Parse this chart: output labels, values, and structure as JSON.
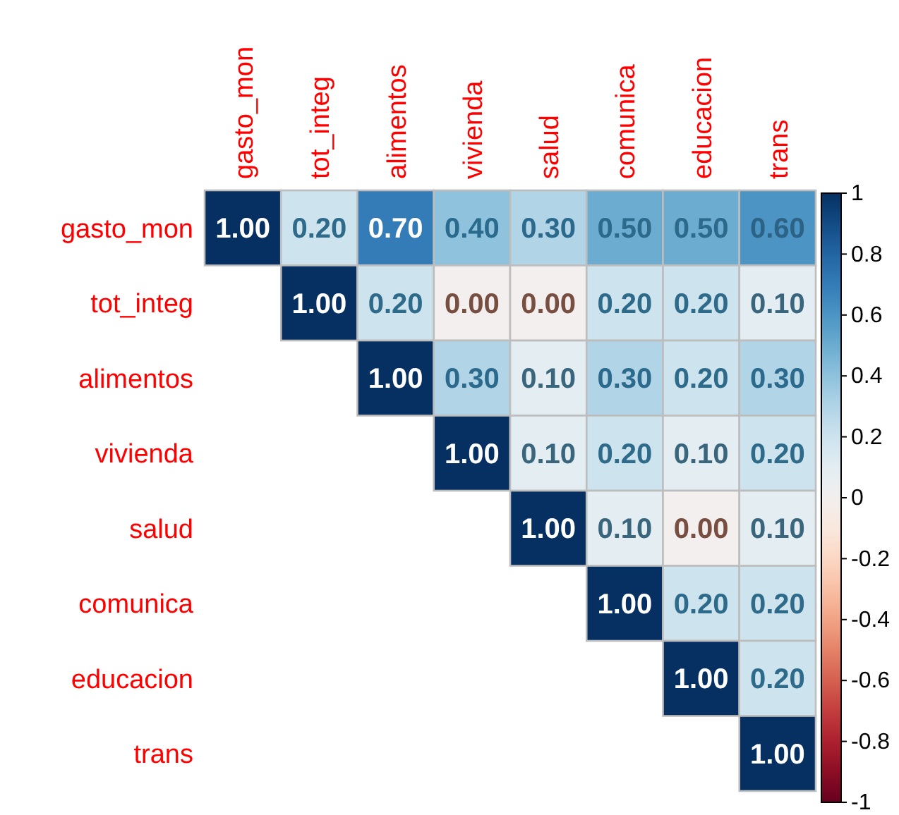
{
  "chart_data": {
    "type": "heatmap",
    "categories": [
      "gasto_mon",
      "tot_integ",
      "alimentos",
      "vivienda",
      "salud",
      "comunica",
      "educacion",
      "trans"
    ],
    "y_categories": [
      "gasto_mon",
      "tot_integ",
      "alimentos",
      "vivienda",
      "salud",
      "comunica",
      "educacion",
      "trans"
    ],
    "cells": [
      [
        1.0,
        0.2,
        0.7,
        0.4,
        0.3,
        0.5,
        0.5,
        0.6
      ],
      [
        null,
        1.0,
        0.2,
        0.0,
        0.0,
        0.2,
        0.2,
        0.1
      ],
      [
        null,
        null,
        1.0,
        0.3,
        0.1,
        0.3,
        0.2,
        0.3
      ],
      [
        null,
        null,
        null,
        1.0,
        0.1,
        0.2,
        0.1,
        0.2
      ],
      [
        null,
        null,
        null,
        null,
        1.0,
        0.1,
        0.0,
        0.1
      ],
      [
        null,
        null,
        null,
        null,
        null,
        1.0,
        0.2,
        0.2
      ],
      [
        null,
        null,
        null,
        null,
        null,
        null,
        1.0,
        0.2
      ],
      [
        null,
        null,
        null,
        null,
        null,
        null,
        null,
        1.0
      ]
    ],
    "cell_labels": [
      [
        "1.00",
        "0.20",
        "0.70",
        "0.40",
        "0.30",
        "0.50",
        "0.50",
        "0.60"
      ],
      [
        null,
        "1.00",
        "0.20",
        "0.00",
        "0.00",
        "0.20",
        "0.20",
        "0.10"
      ],
      [
        null,
        null,
        "1.00",
        "0.30",
        "0.10",
        "0.30",
        "0.20",
        "0.30"
      ],
      [
        null,
        null,
        null,
        "1.00",
        "0.10",
        "0.20",
        "0.10",
        "0.20"
      ],
      [
        null,
        null,
        null,
        null,
        "1.00",
        "0.10",
        "0.00",
        "0.10"
      ],
      [
        null,
        null,
        null,
        null,
        null,
        "1.00",
        "0.20",
        "0.20"
      ],
      [
        null,
        null,
        null,
        null,
        null,
        null,
        "1.00",
        "0.20"
      ],
      [
        null,
        null,
        null,
        null,
        null,
        null,
        null,
        "1.00"
      ]
    ],
    "clim": [
      -1,
      1
    ],
    "cticks": [
      {
        "value": -1,
        "label": "-1"
      },
      {
        "value": -0.8,
        "label": "-0.8"
      },
      {
        "value": -0.6,
        "label": "-0.6"
      },
      {
        "value": -0.4,
        "label": "-0.4"
      },
      {
        "value": -0.2,
        "label": "-0.2"
      },
      {
        "value": 0,
        "label": "0"
      },
      {
        "value": 0.2,
        "label": "0.2"
      },
      {
        "value": 0.4,
        "label": "0.4"
      },
      {
        "value": 0.6,
        "label": "0.6"
      },
      {
        "value": 0.8,
        "label": "0.8"
      },
      {
        "value": 1,
        "label": "1"
      }
    ]
  }
}
